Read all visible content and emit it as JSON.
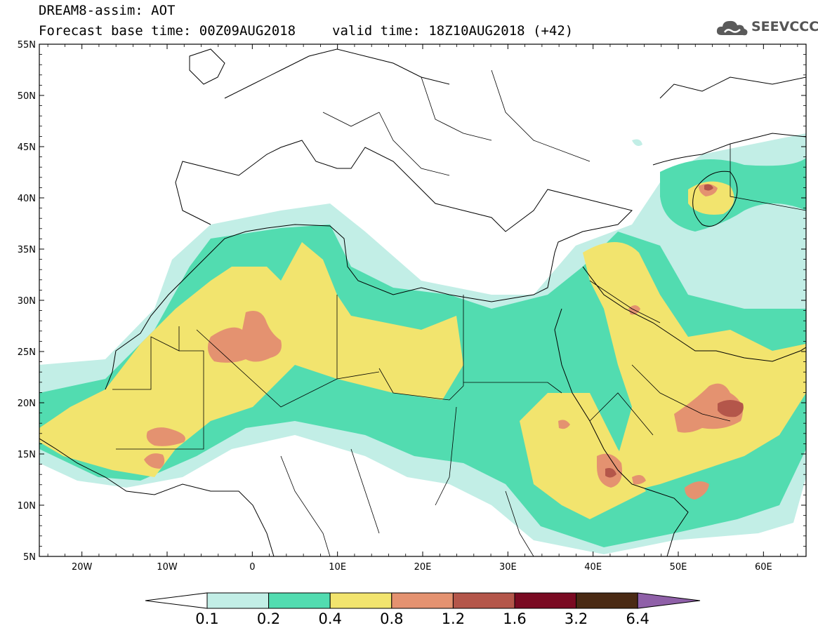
{
  "header": {
    "title": "DREAM8-assim: AOT",
    "base_time": "Forecast base time: 00Z09AUG2018",
    "valid_time": "valid time: 18Z10AUG2018 (+42)"
  },
  "logo": {
    "text": "SEEVCCC",
    "icon": "cloud-icon"
  },
  "map": {
    "lon_range": [
      -25,
      65
    ],
    "lat_range": [
      5,
      55
    ],
    "lat_ticks": [
      "5N",
      "10N",
      "15N",
      "20N",
      "25N",
      "30N",
      "35N",
      "40N",
      "45N",
      "50N",
      "55N"
    ],
    "lon_ticks": [
      "20W",
      "10W",
      "0",
      "10E",
      "20E",
      "30E",
      "40E",
      "50E",
      "60E"
    ],
    "frame_color": "#000000"
  },
  "colorbar": {
    "boundaries": [
      "0.1",
      "0.2",
      "0.4",
      "0.8",
      "1.2",
      "1.6",
      "3.2",
      "6.4"
    ],
    "colors": [
      "#c2eee6",
      "#52dcb0",
      "#f2e46e",
      "#e49270",
      "#b4564a",
      "#7a0a22",
      "#4a2a14",
      "#8f60a8"
    ],
    "under_color": "#ffffff"
  }
}
